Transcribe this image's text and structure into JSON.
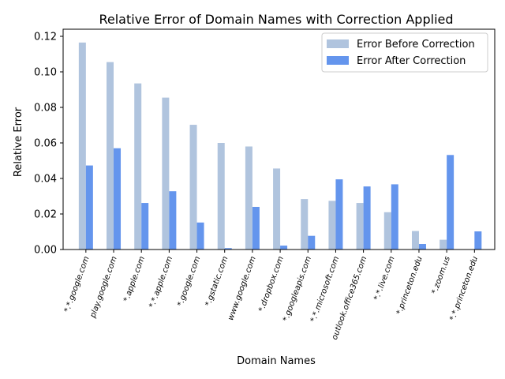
{
  "chart_data": {
    "type": "bar",
    "title": "Relative Error of Domain Names with Correction Applied",
    "xlabel": "Domain Names",
    "ylabel": "Relative Error",
    "ylim": [
      0,
      0.124
    ],
    "yticks": [
      0.0,
      0.02,
      0.04,
      0.06,
      0.08,
      0.1,
      0.12
    ],
    "ytick_labels": [
      "0.00",
      "0.02",
      "0.04",
      "0.06",
      "0.08",
      "0.10",
      "0.12"
    ],
    "grid": false,
    "legend_position": "top-right",
    "categories": [
      "*.*.google.com",
      "play.google.com",
      "*.apple.com",
      "*.*.apple.com",
      "*.google.com",
      "*.gstatic.com",
      "www.google.com",
      "*.dropbox.com",
      "*.googleapis.com",
      "*.*.microsoft.com",
      "outlook.office365.com",
      "*.*.live.com",
      "*.princeton.edu",
      "*.zoom.us",
      "*.*.princeton.edu"
    ],
    "series": [
      {
        "name": "Error Before Correction",
        "color": "#b0c4de",
        "values": [
          0.1165,
          0.1055,
          0.0935,
          0.0855,
          0.0702,
          0.06,
          0.058,
          0.0456,
          0.0284,
          0.0274,
          0.0262,
          0.021,
          0.0104,
          0.0055,
          0.0
        ]
      },
      {
        "name": "Error After Correction",
        "color": "#6495ed",
        "values": [
          0.0473,
          0.057,
          0.0262,
          0.0328,
          0.0152,
          0.0008,
          0.024,
          0.0022,
          0.0077,
          0.0395,
          0.0355,
          0.0367,
          0.0031,
          0.0532,
          0.0102
        ]
      }
    ]
  }
}
